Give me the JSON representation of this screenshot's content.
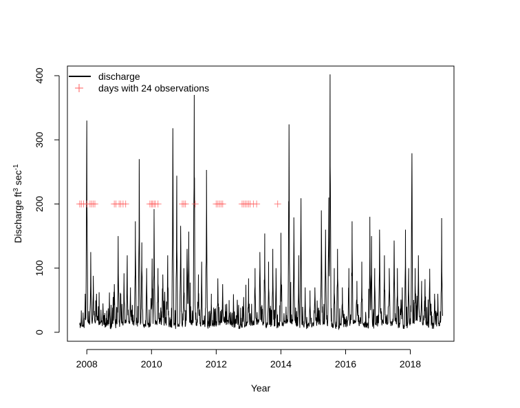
{
  "chart_data": {
    "type": "line",
    "title": "",
    "xlabel": "Year",
    "ylabel_main": "Discharge ft",
    "ylabel_sup1": "3",
    "ylabel_mid": " sec",
    "ylabel_sup2": "-1",
    "xlim": [
      2007.4,
      2019.35
    ],
    "ylim": [
      -14,
      415
    ],
    "x_ticks": [
      2008,
      2010,
      2012,
      2014,
      2016,
      2018
    ],
    "x_tick_labels": [
      "2008",
      "2010",
      "2012",
      "2014",
      "2016",
      "2018"
    ],
    "y_ticks": [
      0,
      100,
      200,
      300,
      400
    ],
    "y_tick_labels": [
      "0",
      "100",
      "200",
      "300",
      "400"
    ],
    "legend": {
      "placement": "top-left",
      "entries": [
        {
          "label": "discharge",
          "symbol": "line",
          "color": "#000000"
        },
        {
          "label": "days with 24 observations",
          "symbol": "plus",
          "color": "#ff5a5a"
        }
      ]
    },
    "series": [
      {
        "name": "discharge",
        "color": "#000000",
        "start": 2007.78,
        "end": 2019.0,
        "baseline": 6,
        "peaks": [
          [
            2007.83,
            34
          ],
          [
            2007.95,
            60
          ],
          [
            2008.0,
            330
          ],
          [
            2008.12,
            125
          ],
          [
            2008.2,
            88
          ],
          [
            2008.3,
            60
          ],
          [
            2008.5,
            45
          ],
          [
            2008.7,
            62
          ],
          [
            2008.85,
            75
          ],
          [
            2008.97,
            150
          ],
          [
            2009.05,
            60
          ],
          [
            2009.15,
            92
          ],
          [
            2009.25,
            120
          ],
          [
            2009.35,
            70
          ],
          [
            2009.5,
            173
          ],
          [
            2009.62,
            270
          ],
          [
            2009.7,
            140
          ],
          [
            2009.85,
            100
          ],
          [
            2010.02,
            115
          ],
          [
            2010.08,
            192
          ],
          [
            2010.2,
            100
          ],
          [
            2010.35,
            90
          ],
          [
            2010.5,
            120
          ],
          [
            2010.66,
            318
          ],
          [
            2010.78,
            244
          ],
          [
            2010.9,
            166
          ],
          [
            2011.0,
            100
          ],
          [
            2011.1,
            130
          ],
          [
            2011.15,
            157
          ],
          [
            2011.32,
            370
          ],
          [
            2011.45,
            90
          ],
          [
            2011.55,
            110
          ],
          [
            2011.7,
            253
          ],
          [
            2011.85,
            60
          ],
          [
            2012.05,
            84
          ],
          [
            2012.2,
            75
          ],
          [
            2012.4,
            50
          ],
          [
            2012.65,
            48
          ],
          [
            2012.85,
            55
          ],
          [
            2013.0,
            84
          ],
          [
            2013.2,
            100
          ],
          [
            2013.35,
            125
          ],
          [
            2013.5,
            154
          ],
          [
            2013.62,
            110
          ],
          [
            2013.75,
            130
          ],
          [
            2013.85,
            100
          ],
          [
            2014.0,
            155
          ],
          [
            2014.25,
            324
          ],
          [
            2014.4,
            179
          ],
          [
            2014.55,
            120
          ],
          [
            2014.62,
            209
          ],
          [
            2014.75,
            70
          ],
          [
            2014.9,
            65
          ],
          [
            2015.05,
            70
          ],
          [
            2015.25,
            190
          ],
          [
            2015.38,
            160
          ],
          [
            2015.48,
            210
          ],
          [
            2015.52,
            402
          ],
          [
            2015.65,
            100
          ],
          [
            2015.75,
            130
          ],
          [
            2015.9,
            70
          ],
          [
            2016.1,
            100
          ],
          [
            2016.2,
            173
          ],
          [
            2016.35,
            80
          ],
          [
            2016.5,
            110
          ],
          [
            2016.75,
            180
          ],
          [
            2016.8,
            150
          ],
          [
            2016.9,
            100
          ],
          [
            2017.05,
            160
          ],
          [
            2017.2,
            120
          ],
          [
            2017.35,
            100
          ],
          [
            2017.5,
            143
          ],
          [
            2017.6,
            100
          ],
          [
            2017.75,
            70
          ],
          [
            2017.85,
            160
          ],
          [
            2017.95,
            100
          ],
          [
            2018.05,
            279
          ],
          [
            2018.15,
            100
          ],
          [
            2018.25,
            120
          ],
          [
            2018.35,
            80
          ],
          [
            2018.45,
            60
          ],
          [
            2018.6,
            99
          ],
          [
            2018.75,
            60
          ],
          [
            2018.85,
            60
          ],
          [
            2018.97,
            178
          ]
        ]
      },
      {
        "name": "days with 24 observations",
        "color": "#ff5a5a",
        "y": 200,
        "x": [
          2007.78,
          2007.83,
          2007.9,
          2008.0,
          2008.1,
          2008.15,
          2008.2,
          2008.25,
          2008.85,
          2008.9,
          2009.0,
          2009.05,
          2009.12,
          2009.2,
          2009.95,
          2010.0,
          2010.03,
          2010.08,
          2010.12,
          2010.2,
          2010.95,
          2011.0,
          2011.05,
          2011.35,
          2012.0,
          2012.05,
          2012.1,
          2012.15,
          2012.2,
          2012.8,
          2012.85,
          2012.9,
          2012.95,
          2013.0,
          2013.05,
          2013.15,
          2013.25,
          2013.9
        ]
      }
    ]
  }
}
